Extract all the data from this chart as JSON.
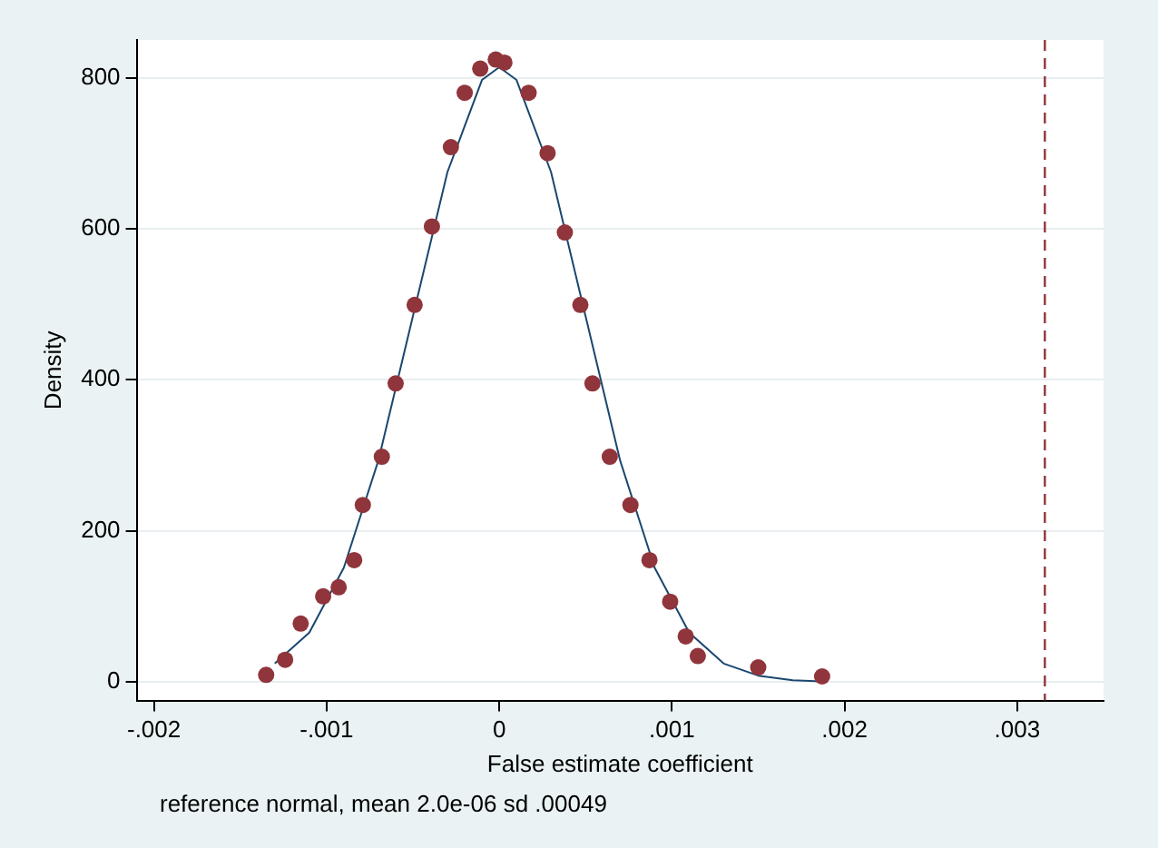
{
  "chart_data": {
    "type": "scatter",
    "xlabel": "False estimate coefficient",
    "ylabel": "Density",
    "annotations": [
      "reference normal, mean 2.0e-06 sd .00049"
    ],
    "xlim": [
      -0.0021,
      0.0035
    ],
    "xticks": [
      {
        "value": -0.002,
        "label": "-.002"
      },
      {
        "value": -0.001,
        "label": "-.001"
      },
      0,
      {
        "value": 0.001,
        "label": ".001"
      },
      {
        "value": 0.002,
        "label": ".002"
      },
      {
        "value": 0.003,
        "label": ".003"
      }
    ],
    "ylim": [
      -25,
      850
    ],
    "yticks": [
      0,
      200,
      400,
      600,
      800
    ],
    "grid": "y",
    "marker": "circle",
    "legend": false,
    "ref_lines": [
      {
        "axis": "x",
        "value": 0.00316,
        "color": "#90353b",
        "line_style": "dashed"
      }
    ],
    "series": [
      {
        "type": "line",
        "color": "#1a476f",
        "marker": "none",
        "x": [
          -0.0013,
          -0.0011,
          -0.0009,
          -0.0007,
          -0.0005,
          -0.0003,
          -0.0001,
          0,
          0.0001,
          0.0003,
          0.0005,
          0.0007,
          0.0009,
          0.0011,
          0.0013,
          0.0015,
          0.0017,
          0.0019
        ],
        "values": [
          24,
          65,
          151,
          293,
          484,
          675,
          797,
          814,
          797,
          675,
          484,
          293,
          151,
          65,
          24,
          8,
          2,
          0
        ]
      },
      {
        "color": "#90353b",
        "x": [
          -0.00135,
          -0.00124,
          -0.00115,
          -0.00102,
          -0.00093,
          -0.00084,
          -0.00079,
          -0.00068,
          -0.0006,
          -0.00049,
          -0.00039,
          -0.00028,
          -0.0002,
          -0.00011,
          -2e-05,
          3e-05,
          0.00017,
          0.00028,
          0.00038,
          0.00047,
          0.00054,
          0.00064,
          0.00076,
          0.00087,
          0.00099,
          0.00108,
          0.00115,
          0.0015,
          0.00187
        ],
        "values": [
          9,
          29,
          77,
          113,
          125,
          161,
          234,
          298,
          395,
          499,
          603,
          708,
          780,
          812,
          824,
          820,
          780,
          700,
          595,
          499,
          395,
          298,
          234,
          161,
          106,
          60,
          34,
          19,
          7
        ]
      }
    ]
  }
}
